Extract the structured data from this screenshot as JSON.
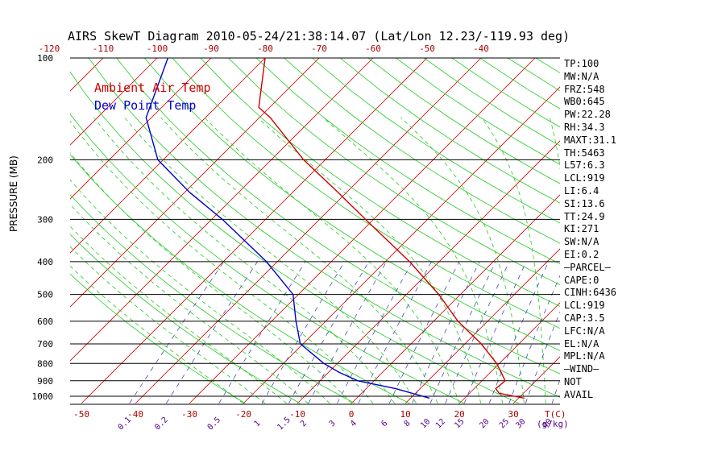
{
  "title": "AIRS SkewT Diagram 2010-05-24/21:38:14.07 (Lat/Lon 12.23/-119.93 deg)",
  "y_axis_label": "PRESSURE (MB)",
  "legend": [
    {
      "label": "Ambient Air Temp",
      "color": "#d00000"
    },
    {
      "label": "Dew Point Temp",
      "color": "#0000cc"
    }
  ],
  "colors": {
    "isotherm": "#d00000",
    "dry_adiabat": "#22cc22",
    "moist_adiabat": "#22cc22",
    "mixing_ratio": "#3333aa",
    "isobar": "#000000",
    "axis_text_bottom": "#aa0000",
    "mixing_ratio_text": "#550088"
  },
  "indices": [
    "TP:100",
    "MW:N/A",
    "FRZ:548",
    "WB0:645",
    "PW:22.28",
    "RH:34.3",
    "MAXT:31.1",
    "TH:5463",
    "L57:6.3",
    "LCL:919",
    "LI:6.4",
    "SI:13.6",
    "TT:24.9",
    "KI:271",
    "SW:N/A",
    "EI:0.2",
    "—PARCEL—",
    "CAPE:0",
    "CINH:6436",
    "LCL:919",
    "CAP:3.5",
    "LFC:N/A",
    "EL:N/A",
    "MPL:N/A",
    "—WIND—",
    "NOT",
    "AVAIL"
  ],
  "chart_data": {
    "type": "line",
    "title": "AIRS SkewT Diagram 2010-05-24/21:38:14.07 (Lat/Lon 12.23/-119.93 deg)",
    "ylabel": "PRESSURE (MB)",
    "xlabel": "T(C)",
    "y_scale": "log",
    "ylim": [
      1050,
      100
    ],
    "pressure_ticks": [
      100,
      200,
      300,
      400,
      500,
      600,
      700,
      800,
      900,
      1000
    ],
    "top_temp_ticks": [
      -120,
      -110,
      -100,
      -90,
      -80,
      -70,
      -60,
      -50,
      -40
    ],
    "bottom_temp_ticks": [
      -50,
      -40,
      -30,
      -20,
      -10,
      0,
      10,
      20,
      30
    ],
    "bottom_axis_unit": "T(C)",
    "mixing_ratio_labels": [
      "0.1",
      "0.2",
      "0.5",
      "1",
      "1.5",
      "2",
      "3",
      "4",
      "6",
      "8",
      "10",
      "12",
      "15",
      "20",
      "25",
      "30",
      "40"
    ],
    "mixing_ratio_unit": "(g/kg)",
    "series": [
      {
        "name": "Ambient Air Temp",
        "color": "#d00000",
        "points": [
          {
            "p": 1013,
            "t": 31.1
          },
          {
            "p": 980,
            "t": 25.5
          },
          {
            "p": 950,
            "t": 24.0
          },
          {
            "p": 900,
            "t": 24.3
          },
          {
            "p": 850,
            "t": 22.0
          },
          {
            "p": 800,
            "t": 19.5
          },
          {
            "p": 700,
            "t": 13.0
          },
          {
            "p": 600,
            "t": 4.5
          },
          {
            "p": 500,
            "t": -4.0
          },
          {
            "p": 400,
            "t": -15.5
          },
          {
            "p": 300,
            "t": -31.5
          },
          {
            "p": 250,
            "t": -41.5
          },
          {
            "p": 200,
            "t": -54.0
          },
          {
            "p": 150,
            "t": -68.0
          },
          {
            "p": 140,
            "t": -72.0
          },
          {
            "p": 100,
            "t": -80.0
          }
        ]
      },
      {
        "name": "Dew Point Temp",
        "color": "#0000cc",
        "points": [
          {
            "p": 1013,
            "t": 13.5
          },
          {
            "p": 950,
            "t": 5.5
          },
          {
            "p": 900,
            "t": -3.0
          },
          {
            "p": 850,
            "t": -8.0
          },
          {
            "p": 800,
            "t": -12.5
          },
          {
            "p": 700,
            "t": -20.5
          },
          {
            "p": 600,
            "t": -25.5
          },
          {
            "p": 500,
            "t": -31.0
          },
          {
            "p": 400,
            "t": -42.0
          },
          {
            "p": 300,
            "t": -58.0
          },
          {
            "p": 250,
            "t": -69.0
          },
          {
            "p": 200,
            "t": -81.0
          },
          {
            "p": 150,
            "t": -91.0
          },
          {
            "p": 100,
            "t": -98.0
          }
        ]
      }
    ]
  }
}
